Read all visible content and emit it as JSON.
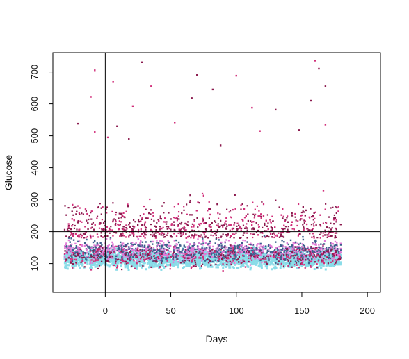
{
  "chart_data": {
    "type": "scatter",
    "title": "",
    "xlabel": "Days",
    "ylabel": "Glucose",
    "xlim": [
      -40,
      210
    ],
    "ylim": [
      10,
      760
    ],
    "x_ticks": [
      0,
      50,
      100,
      150,
      200
    ],
    "y_ticks": [
      100,
      200,
      300,
      400,
      500,
      600,
      700
    ],
    "x_tick_labels": [
      "0",
      "50",
      "100",
      "150",
      "200"
    ],
    "y_tick_labels": [
      "100",
      "200",
      "300",
      "400",
      "500",
      "600",
      "700"
    ],
    "reference_lines": {
      "vertical_x": 0,
      "horizontal_y": 200
    },
    "grid": false,
    "legend": "none",
    "series_colors": [
      "#8b1a4e",
      "#d12f7a",
      "#3d5f8c",
      "#e07ad6",
      "#8adce8"
    ],
    "x_range_of_points": [
      -31,
      180
    ],
    "approx_band": {
      "dense_low": 70,
      "dense_high": 200
    },
    "outlier_points": [
      {
        "x": -8,
        "y": 705
      },
      {
        "x": 28,
        "y": 730
      },
      {
        "x": 160,
        "y": 735
      },
      {
        "x": 163,
        "y": 710
      },
      {
        "x": 6,
        "y": 670
      },
      {
        "x": 70,
        "y": 690
      },
      {
        "x": 100,
        "y": 688
      },
      {
        "x": 168,
        "y": 655
      },
      {
        "x": 35,
        "y": 655
      },
      {
        "x": 82,
        "y": 645
      },
      {
        "x": -11,
        "y": 622
      },
      {
        "x": 66,
        "y": 618
      },
      {
        "x": 21,
        "y": 593
      },
      {
        "x": 157,
        "y": 610
      },
      {
        "x": 112,
        "y": 588
      },
      {
        "x": 130,
        "y": 582
      },
      {
        "x": 53,
        "y": 542
      },
      {
        "x": -21,
        "y": 538
      },
      {
        "x": 168,
        "y": 535
      },
      {
        "x": 9,
        "y": 530
      },
      {
        "x": -8,
        "y": 512
      },
      {
        "x": 148,
        "y": 518
      },
      {
        "x": 118,
        "y": 515
      },
      {
        "x": 18,
        "y": 490
      },
      {
        "x": 2,
        "y": 495
      },
      {
        "x": 88,
        "y": 470
      }
    ]
  }
}
